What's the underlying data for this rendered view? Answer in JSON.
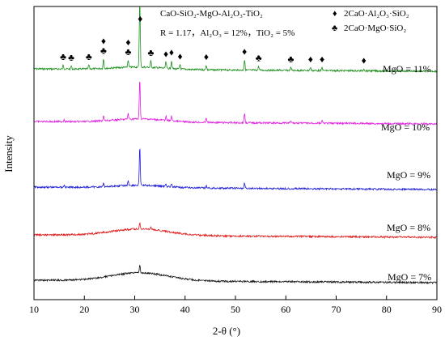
{
  "chart_data": {
    "type": "line",
    "title": "CaO-SiO₂-MgO-Al₂O₃-TiO₂",
    "subtitle": "R = 1.17，Al₂O₃ = 12%，TiO₂ = 5%",
    "xlabel": "2-θ (°)",
    "ylabel": "Intensity",
    "xlim": [
      10,
      90
    ],
    "xticks": [
      10,
      20,
      30,
      40,
      50,
      60,
      70,
      80,
      90
    ],
    "y_tick_labels": "none",
    "grid": false,
    "legend": {
      "placement": "top-right",
      "entries": [
        {
          "symbol": "♦",
          "label": "2CaO·Al₂O₃·SiO₂"
        },
        {
          "symbol": "♣",
          "label": "2CaO·MgO·SiO₂"
        }
      ]
    },
    "series": [
      {
        "name": "MgO = 11%",
        "color": "#1e8f1e",
        "baseline": 87,
        "hump": {
          "center": 31,
          "width": 7,
          "height": 3
        },
        "peaks": [
          [
            15.8,
            5
          ],
          [
            17.4,
            4
          ],
          [
            20.9,
            5
          ],
          [
            23.8,
            12
          ],
          [
            28.7,
            9
          ],
          [
            31.0,
            90
          ],
          [
            33.2,
            8
          ],
          [
            36.2,
            8
          ],
          [
            37.3,
            10
          ],
          [
            39.0,
            6
          ],
          [
            44.2,
            6
          ],
          [
            51.8,
            13
          ],
          [
            54.6,
            5
          ],
          [
            61.0,
            4
          ],
          [
            64.9,
            4
          ],
          [
            67.2,
            4
          ],
          [
            75.5,
            3
          ]
        ]
      },
      {
        "name": "MgO = 10%",
        "color": "#e020e0",
        "baseline": 152,
        "hump": {
          "center": 31,
          "width": 7,
          "height": 4
        },
        "peaks": [
          [
            16.0,
            3
          ],
          [
            23.8,
            6
          ],
          [
            28.7,
            7
          ],
          [
            31.0,
            50
          ],
          [
            36.2,
            5
          ],
          [
            37.3,
            6
          ],
          [
            44.2,
            6
          ],
          [
            51.8,
            12
          ],
          [
            61.0,
            3
          ],
          [
            67.2,
            3
          ]
        ]
      },
      {
        "name": "MgO = 9%",
        "color": "#1a1ad6",
        "baseline": 233,
        "hump": {
          "center": 31,
          "width": 7,
          "height": 3
        },
        "peaks": [
          [
            16.0,
            3
          ],
          [
            23.8,
            4
          ],
          [
            28.7,
            6
          ],
          [
            31.0,
            48
          ],
          [
            36.2,
            4
          ],
          [
            37.3,
            3
          ],
          [
            44.2,
            3
          ],
          [
            51.8,
            6
          ]
        ]
      },
      {
        "name": "MgO = 8%",
        "color": "#e01818",
        "baseline": 292,
        "hump": {
          "center": 31,
          "width": 8,
          "height": 8
        },
        "peaks": [
          [
            31.0,
            8
          ],
          [
            33.2,
            3
          ]
        ]
      },
      {
        "name": "MgO = 7%",
        "color": "#111111",
        "baseline": 348,
        "hump": {
          "center": 31,
          "width": 8,
          "height": 10
        },
        "peaks": [
          [
            31.0,
            10
          ]
        ]
      }
    ],
    "peak_markers": [
      {
        "x": 15.8,
        "symbol": "♣"
      },
      {
        "x": 17.4,
        "symbol": "♣"
      },
      {
        "x": 20.9,
        "symbol": "♣"
      },
      {
        "x": 23.8,
        "symbol": "♣"
      },
      {
        "x": 23.8,
        "symbol": "♦"
      },
      {
        "x": 28.7,
        "symbol": "♣"
      },
      {
        "x": 28.7,
        "symbol": "♦"
      },
      {
        "x": 31.1,
        "symbol": "♦"
      },
      {
        "x": 33.2,
        "symbol": "♣"
      },
      {
        "x": 36.2,
        "symbol": "♦"
      },
      {
        "x": 37.3,
        "symbol": "♦"
      },
      {
        "x": 39.0,
        "symbol": "♦"
      },
      {
        "x": 44.2,
        "symbol": "♦"
      },
      {
        "x": 51.8,
        "symbol": "♦"
      },
      {
        "x": 54.6,
        "symbol": "♣"
      },
      {
        "x": 61.0,
        "symbol": "♣"
      },
      {
        "x": 64.9,
        "symbol": "♦"
      },
      {
        "x": 67.2,
        "symbol": "♦"
      },
      {
        "x": 75.5,
        "symbol": "♦"
      }
    ]
  }
}
